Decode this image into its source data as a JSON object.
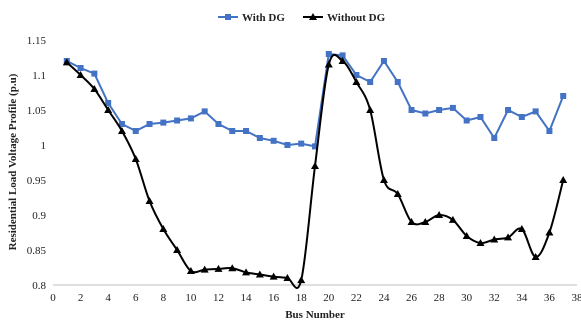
{
  "chart_data": {
    "type": "line",
    "title": "",
    "xlabel": "Bus Number",
    "ylabel": "Residential  Load Voltage Profile (p.u)",
    "xlim": [
      0,
      38
    ],
    "ylim": [
      0.8,
      1.15
    ],
    "xticks": [
      0,
      2,
      4,
      6,
      8,
      10,
      12,
      14,
      16,
      18,
      20,
      22,
      24,
      26,
      28,
      30,
      32,
      34,
      36,
      38
    ],
    "yticks": [
      0.8,
      0.85,
      0.9,
      0.95,
      1,
      1.05,
      1.1,
      1.15
    ],
    "grid": false,
    "legend": "top-center",
    "x": [
      1,
      2,
      3,
      4,
      5,
      6,
      7,
      8,
      9,
      10,
      11,
      12,
      13,
      14,
      15,
      16,
      17,
      18,
      19,
      20,
      21,
      22,
      23,
      24,
      25,
      26,
      27,
      28,
      29,
      30,
      31,
      32,
      33,
      34,
      35,
      36,
      37
    ],
    "series": [
      {
        "name": "With DG",
        "color": "#4472C4",
        "marker": "square",
        "smooth": false,
        "values": [
          1.12,
          1.11,
          1.102,
          1.06,
          1.03,
          1.02,
          1.03,
          1.032,
          1.035,
          1.038,
          1.048,
          1.03,
          1.02,
          1.02,
          1.01,
          1.006,
          1.0,
          1.002,
          0.998,
          1.13,
          1.128,
          1.1,
          1.09,
          1.12,
          1.09,
          1.05,
          1.045,
          1.05,
          1.053,
          1.035,
          1.04,
          1.01,
          1.05,
          1.04,
          1.048,
          1.02,
          1.07
        ]
      },
      {
        "name": "Without DG",
        "color": "#000000",
        "marker": "triangle",
        "smooth": true,
        "values": [
          1.118,
          1.1,
          1.08,
          1.05,
          1.02,
          0.98,
          0.92,
          0.88,
          0.85,
          0.82,
          0.822,
          0.823,
          0.824,
          0.818,
          0.815,
          0.812,
          0.81,
          0.807,
          0.97,
          1.115,
          1.12,
          1.09,
          1.05,
          0.95,
          0.93,
          0.89,
          0.89,
          0.9,
          0.893,
          0.87,
          0.86,
          0.865,
          0.868,
          0.88,
          0.84,
          0.875,
          0.95
        ]
      }
    ]
  }
}
